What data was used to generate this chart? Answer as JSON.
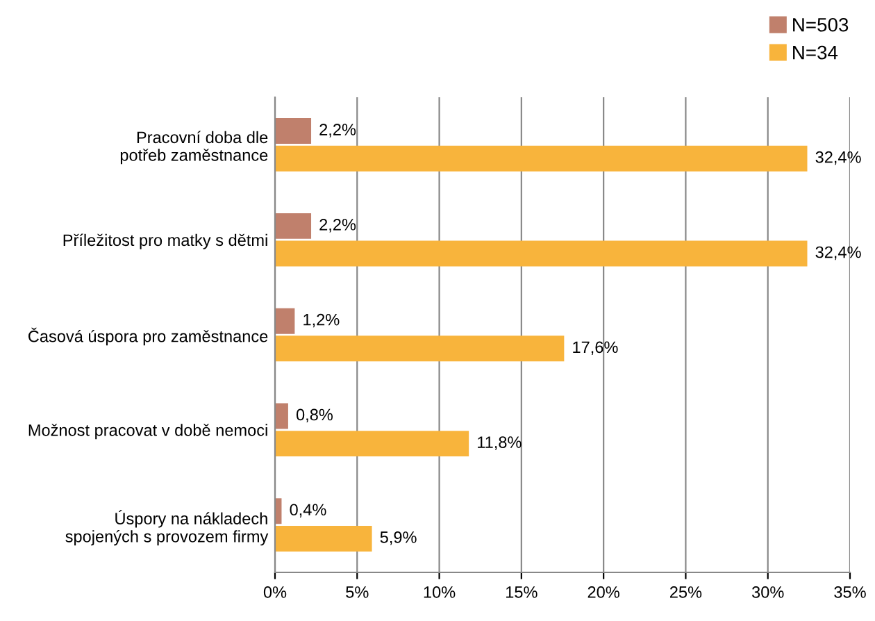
{
  "chart_data": {
    "type": "bar",
    "orientation": "horizontal",
    "categories": [
      "Pracovní doba dle\npotřeb zaměstnance",
      "Příležitost pro matky s dětmi",
      "Časová úspora pro zaměstnance",
      "Možnost pracovat v době nemoci",
      "Úspory na nákladech\nspojených s provozem firmy"
    ],
    "series": [
      {
        "name": "N=503",
        "color": "#c0806c",
        "values": [
          2.2,
          2.2,
          1.2,
          0.8,
          0.4
        ],
        "value_labels": [
          "2,2%",
          "2,2%",
          "1,2%",
          "0,8%",
          "0,4%"
        ]
      },
      {
        "name": "N=34",
        "color": "#f8b43c",
        "values": [
          32.4,
          32.4,
          17.6,
          11.8,
          5.9
        ],
        "value_labels": [
          "32,4%",
          "32,4%",
          "17,6%",
          "11,8%",
          "5,9%"
        ]
      }
    ],
    "xlim": [
      0,
      35
    ],
    "xticks": [
      {
        "value": 0,
        "label": "0%"
      },
      {
        "value": 5,
        "label": "5%"
      },
      {
        "value": 10,
        "label": "10%"
      },
      {
        "value": 15,
        "label": "15%"
      },
      {
        "value": 20,
        "label": "20%"
      },
      {
        "value": 25,
        "label": "25%"
      },
      {
        "value": 30,
        "label": "30%"
      },
      {
        "value": 35,
        "label": "35%"
      }
    ],
    "grid": "x",
    "legend": "top right"
  }
}
